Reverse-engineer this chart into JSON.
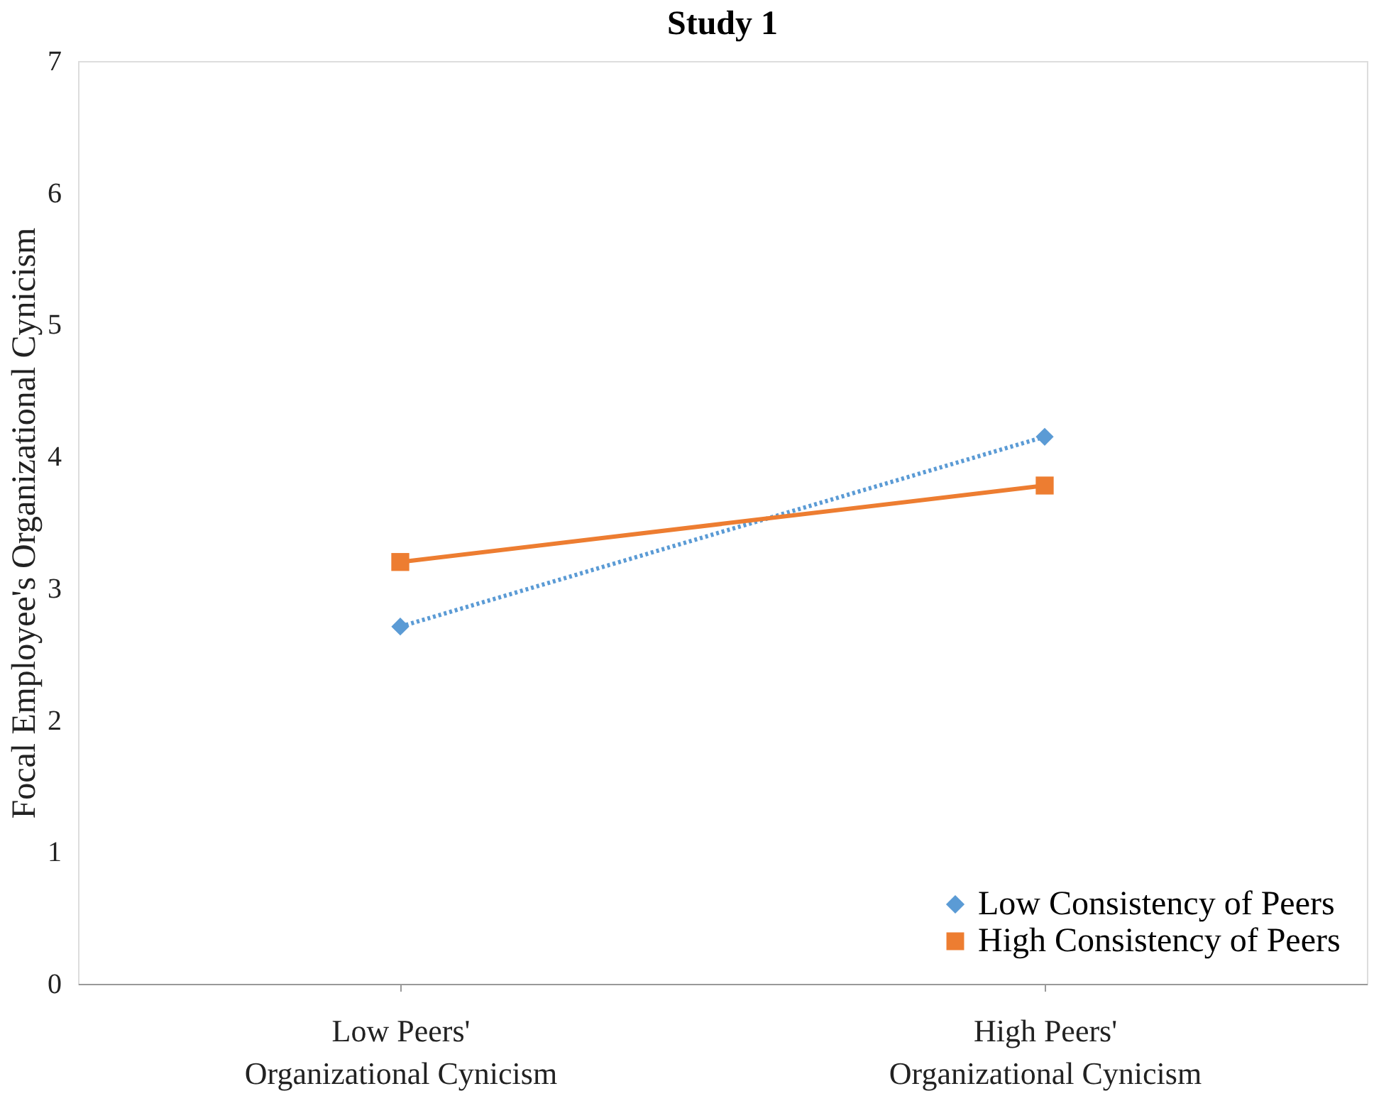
{
  "chart_data": {
    "type": "line",
    "title": "Study 1",
    "ylabel": "Focal Employee's Organizational Cynicism",
    "categories": [
      "Low Peers'\nOrganizational Cynicism",
      "High Peers'\nOrganizational Cynicism"
    ],
    "series": [
      {
        "name": "Low Consistency of Peers",
        "color": "#5b9bd5",
        "values": [
          2.71,
          4.15
        ],
        "marker": "diamond",
        "line_style": "dotted"
      },
      {
        "name": "High Consistency of Peers",
        "color": "#ed7d31",
        "values": [
          3.2,
          3.78
        ],
        "marker": "square",
        "line_style": "solid"
      }
    ],
    "ylim": [
      0,
      7
    ],
    "yticks": [
      0,
      1,
      2,
      3,
      4,
      5,
      6,
      7
    ],
    "grid": false,
    "legend": "bottom right"
  }
}
